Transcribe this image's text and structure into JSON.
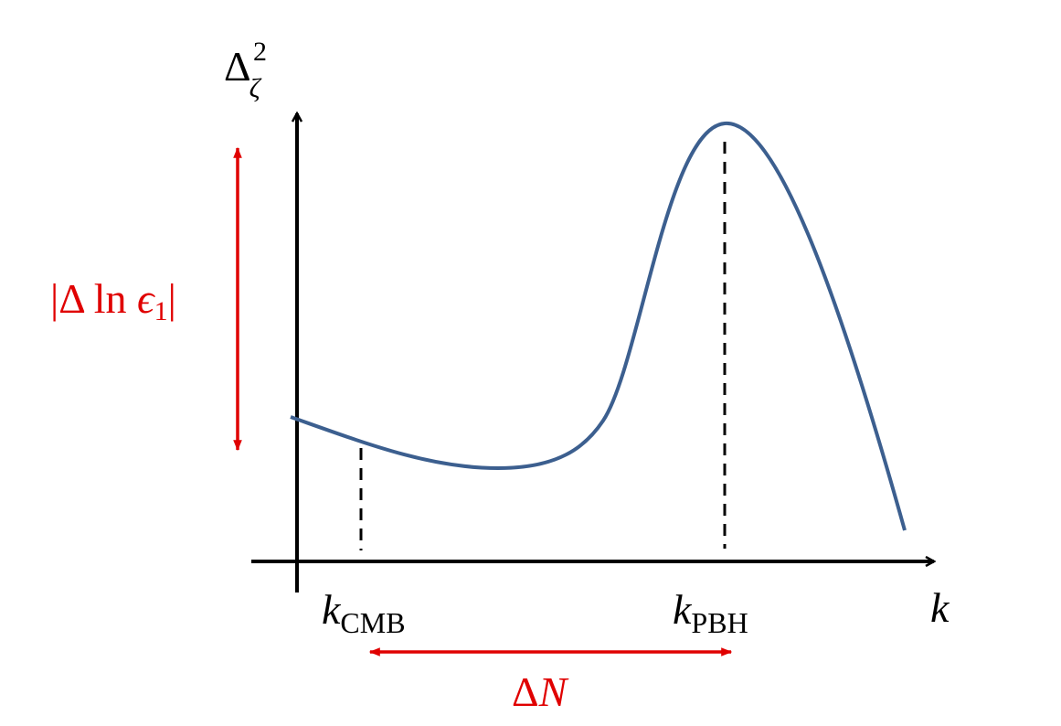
{
  "axes": {
    "y_label": {
      "base": "Δ",
      "subscript": "ζ",
      "superscript": "2"
    },
    "x_label": "k"
  },
  "markers": [
    {
      "symbol": "k",
      "subscript": "CMB"
    },
    {
      "symbol": "k",
      "subscript": "PBH"
    }
  ],
  "annotations": {
    "vertical": {
      "prefix": "|Δ ln ",
      "symbol": "ϵ",
      "subscript": "1",
      "suffix": "|"
    },
    "horizontal": {
      "delta": "Δ",
      "symbol": "N"
    }
  }
}
